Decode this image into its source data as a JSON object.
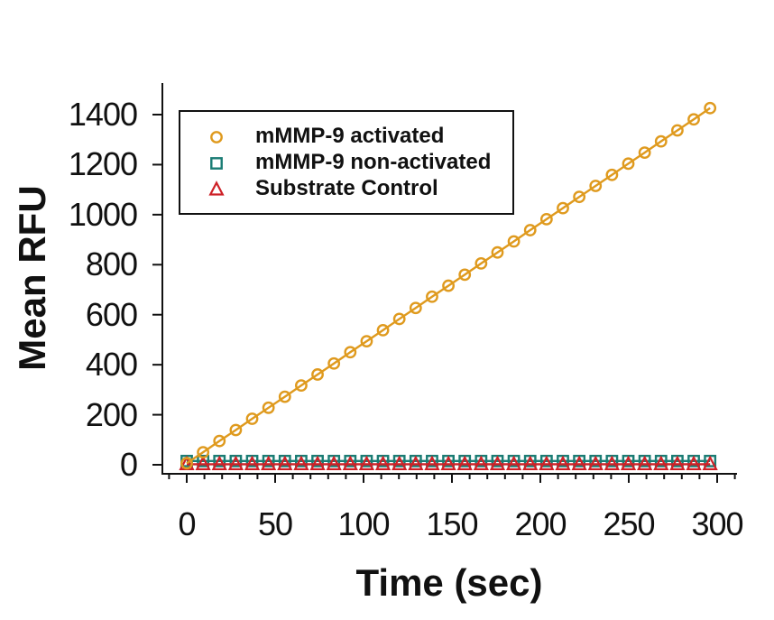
{
  "chart_data": {
    "type": "line",
    "title": "",
    "xlabel": "Time (sec)",
    "ylabel": "Mean RFU",
    "xlim": [
      -14,
      311
    ],
    "ylim": [
      -36,
      1527
    ],
    "grid": false,
    "legend_position": "top-left-inside",
    "x_major_ticks": [
      0,
      50,
      100,
      150,
      200,
      250,
      300
    ],
    "x_tick_labels": [
      "0",
      "50",
      "100",
      "150",
      "200",
      "250",
      "300"
    ],
    "x_minor_ticks": [
      -10,
      10,
      20,
      30,
      40,
      60,
      70,
      80,
      90,
      110,
      120,
      130,
      140,
      160,
      170,
      180,
      190,
      210,
      220,
      230,
      240,
      260,
      270,
      280,
      290,
      310
    ],
    "y_major_ticks": [
      0,
      200,
      400,
      600,
      800,
      1000,
      1200,
      1400
    ],
    "y_tick_labels": [
      "0",
      "200",
      "400",
      "600",
      "800",
      "1000",
      "1200",
      "1400"
    ],
    "x": [
      0,
      9.25,
      18.5,
      27.75,
      37,
      46.25,
      55.5,
      64.75,
      74,
      83.25,
      92.5,
      101.75,
      111,
      120.25,
      129.5,
      138.75,
      148,
      157.25,
      166.5,
      175.75,
      185,
      194.25,
      203.5,
      212.75,
      222,
      231.25,
      240.5,
      249.75,
      259,
      268.25,
      277.5,
      286.75,
      296
    ],
    "series": [
      {
        "id": "mmp9-activated",
        "name": "mMMP-9 activated",
        "marker": "circle",
        "color": "#DF9A1E",
        "values": [
          6,
          50,
          95,
          139,
          184,
          228,
          272,
          317,
          361,
          405,
          450,
          494,
          538,
          583,
          627,
          672,
          716,
          760,
          805,
          849,
          893,
          938,
          982,
          1026,
          1071,
          1115,
          1159,
          1204,
          1248,
          1293,
          1337,
          1381,
          1426
        ]
      },
      {
        "id": "mmp9-non-activated",
        "name": "mMMP-9 non-activated",
        "marker": "square",
        "color": "#1A7C74",
        "values": [
          15,
          15,
          15,
          15,
          15,
          15,
          15,
          15,
          15,
          15,
          15,
          15,
          15,
          15,
          15,
          15,
          15,
          15,
          15,
          15,
          15,
          15,
          15,
          15,
          15,
          15,
          15,
          15,
          15,
          15,
          15,
          15,
          15
        ]
      },
      {
        "id": "substrate-control",
        "name": "Substrate Control",
        "marker": "triangle",
        "color": "#CE2127",
        "values": [
          2,
          2,
          2,
          2,
          2,
          2,
          2,
          2,
          2,
          2,
          2,
          2,
          2,
          2,
          2,
          2,
          2,
          2,
          2,
          2,
          2,
          2,
          2,
          2,
          2,
          2,
          2,
          2,
          2,
          2,
          2,
          2,
          2
        ]
      }
    ],
    "axis_color": "#111111",
    "background_color": "#ffffff"
  }
}
